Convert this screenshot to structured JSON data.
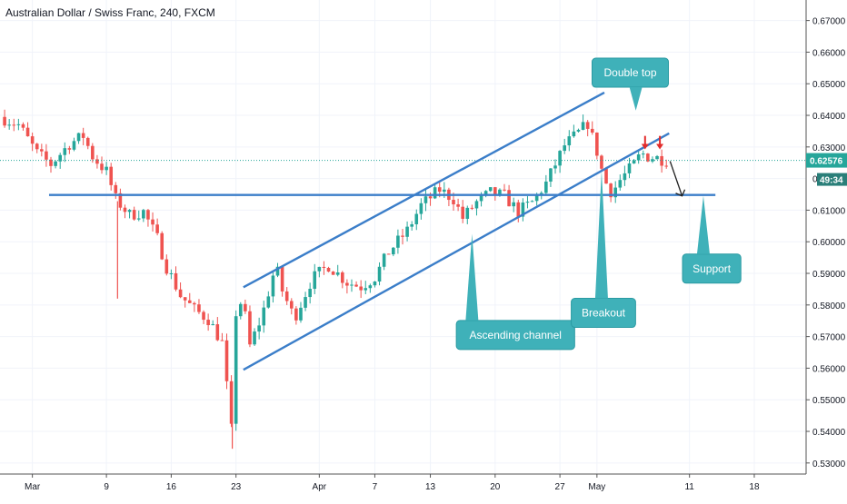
{
  "chart_data": {
    "type": "candlestick",
    "title": "Australian Dollar / Swiss Franc, 240, FXCM",
    "y_ticks": [
      0.53,
      0.54,
      0.55,
      0.56,
      0.57,
      0.58,
      0.59,
      0.6,
      0.61,
      0.62,
      0.63,
      0.64,
      0.65,
      0.66,
      0.67
    ],
    "y_tick_labels": [
      "0.53000",
      "0.54000",
      "0.55000",
      "0.56000",
      "0.57000",
      "0.58000",
      "0.59000",
      "0.60000",
      "0.61000",
      "0.62000",
      "0.63000",
      "0.64000",
      "0.65000",
      "0.66000",
      "0.67000"
    ],
    "ylim": [
      0.5265,
      0.6765
    ],
    "x_ticks": [
      {
        "label": "Mar",
        "day": 0
      },
      {
        "label": "9",
        "day": 8
      },
      {
        "label": "16",
        "day": 15
      },
      {
        "label": "23",
        "day": 22
      },
      {
        "label": "Apr",
        "day": 31
      },
      {
        "label": "7",
        "day": 37
      },
      {
        "label": "13",
        "day": 43
      },
      {
        "label": "20",
        "day": 50
      },
      {
        "label": "27",
        "day": 57
      },
      {
        "label": "May",
        "day": 61
      },
      {
        "label": "11",
        "day": 71
      },
      {
        "label": "18",
        "day": 78
      }
    ],
    "xlim": [
      -3.5,
      83.6
    ],
    "current_price": 0.62576,
    "current_price_label": "0.62576",
    "countdown_label": "49:34",
    "hidden_tick_fragment": "0",
    "path_points": [
      [
        -3.5,
        0.6395
      ],
      [
        -1.5,
        0.637
      ],
      [
        0.5,
        0.628
      ],
      [
        2,
        0.6245
      ],
      [
        4,
        0.631
      ],
      [
        5.5,
        0.6335
      ],
      [
        6.5,
        0.627
      ],
      [
        8,
        0.6222
      ],
      [
        9,
        0.6135
      ],
      [
        10.5,
        0.6085
      ],
      [
        12,
        0.6095
      ],
      [
        13.5,
        0.601
      ],
      [
        14.5,
        0.592
      ],
      [
        16,
        0.583
      ],
      [
        17.5,
        0.5785
      ],
      [
        19,
        0.5755
      ],
      [
        20.5,
        0.568
      ],
      [
        21.5,
        0.5405
      ],
      [
        22,
        0.5775
      ],
      [
        22.7,
        0.582
      ],
      [
        23.5,
        0.567
      ],
      [
        24.8,
        0.5765
      ],
      [
        26.3,
        0.5925
      ],
      [
        27,
        0.5845
      ],
      [
        28.3,
        0.5758
      ],
      [
        30.2,
        0.5882
      ],
      [
        32,
        0.5925
      ],
      [
        34,
        0.5872
      ],
      [
        35.5,
        0.5858
      ],
      [
        37,
        0.5888
      ],
      [
        38.5,
        0.5968
      ],
      [
        40.5,
        0.6035
      ],
      [
        42,
        0.6115
      ],
      [
        44,
        0.6165
      ],
      [
        45.5,
        0.6135
      ],
      [
        46.5,
        0.6075
      ],
      [
        48,
        0.6125
      ],
      [
        49.5,
        0.6155
      ],
      [
        51,
        0.6145
      ],
      [
        52.5,
        0.6095
      ],
      [
        54,
        0.6125
      ],
      [
        55.5,
        0.6185
      ],
      [
        56.5,
        0.6245
      ],
      [
        57.5,
        0.6305
      ],
      [
        59,
        0.6345
      ],
      [
        60,
        0.6375
      ],
      [
        61,
        0.6285
      ],
      [
        61.8,
        0.6195
      ],
      [
        62.6,
        0.6155
      ],
      [
        63.5,
        0.6195
      ],
      [
        65,
        0.6245
      ],
      [
        65.8,
        0.628
      ],
      [
        66.5,
        0.627
      ],
      [
        67.5,
        0.6265
      ],
      [
        68.5,
        0.6258
      ]
    ],
    "spikes": [
      {
        "x": 9.2,
        "low": 0.582
      },
      {
        "x": 21.6,
        "low": 0.5345
      }
    ],
    "colors": {
      "up": "#26a69a",
      "down": "#ef5350",
      "trendline": "#3b7ec9",
      "callout": "#3fb1b9",
      "price_line": "#26a69a",
      "arrow_red": "#e22b2b"
    },
    "lines": [
      {
        "name": "channel-upper-line",
        "from": [
          22.8,
          0.5856
        ],
        "to": [
          61.8,
          0.6472
        ]
      },
      {
        "name": "channel-lower-line",
        "from": [
          22.8,
          0.5595
        ],
        "to": [
          68.8,
          0.6343
        ]
      },
      {
        "name": "support-line",
        "from": [
          1.8,
          0.6148
        ],
        "to": [
          73.8,
          0.6148
        ]
      }
    ],
    "annotations": [
      {
        "name": "callout-double-top",
        "text": "Double top",
        "anchor": [
          64.6,
          0.6535
        ],
        "pointer": [
          65.2,
          0.6415
        ]
      },
      {
        "name": "callout-ascending-channel",
        "text": "Ascending channel",
        "anchor": [
          52.2,
          0.5705
        ],
        "pointer": [
          47.5,
          0.6025
        ]
      },
      {
        "name": "callout-breakout",
        "text": "Breakout",
        "anchor": [
          61.7,
          0.5775
        ],
        "pointer": [
          61.5,
          0.6225
        ]
      },
      {
        "name": "callout-support",
        "text": "Support",
        "anchor": [
          73.4,
          0.5915
        ],
        "pointer": [
          72.5,
          0.6145
        ]
      }
    ],
    "markers": [
      {
        "name": "red-arrow-left",
        "x": 66.2,
        "y_from": 0.6335,
        "y_to": 0.6295
      },
      {
        "name": "red-arrow-right",
        "x": 67.8,
        "y_from": 0.6335,
        "y_to": 0.6295
      },
      {
        "name": "black-arrow-down",
        "from": [
          68.9,
          0.6255
        ],
        "to": [
          70.2,
          0.6145
        ]
      }
    ]
  }
}
